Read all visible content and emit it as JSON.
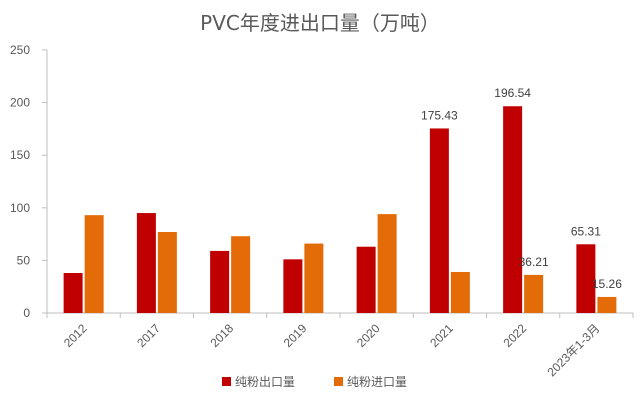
{
  "chart_data": {
    "type": "bar",
    "title": "PVC年度进出口量（万吨）",
    "categories": [
      "2012",
      "2017",
      "2018",
      "2019",
      "2020",
      "2021",
      "2022",
      "2023年1-3月"
    ],
    "series": [
      {
        "name": "纯粉出口量",
        "color": "#C00000",
        "values": [
          38,
          95,
          59,
          51,
          63,
          175.43,
          196.54,
          65.31
        ]
      },
      {
        "name": "纯粉进口量",
        "color": "#E36C09",
        "values": [
          93,
          77,
          73,
          66,
          94,
          39,
          36.21,
          15.26
        ]
      }
    ],
    "data_labels": [
      {
        "series": 0,
        "index": 5,
        "text": "175.43"
      },
      {
        "series": 0,
        "index": 6,
        "text": "196.54"
      },
      {
        "series": 1,
        "index": 6,
        "text": "36.21"
      },
      {
        "series": 0,
        "index": 7,
        "text": "65.31"
      },
      {
        "series": 1,
        "index": 7,
        "text": "15.26"
      }
    ],
    "yticks": [
      "0",
      "50",
      "100",
      "150",
      "200",
      "250"
    ],
    "ylim": [
      0,
      250
    ],
    "grid": false,
    "legend": "bottom",
    "xlabel": "",
    "ylabel": ""
  }
}
